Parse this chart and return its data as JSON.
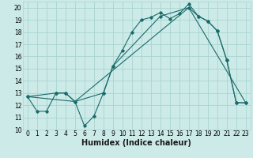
{
  "bg_color": "#cceae8",
  "grid_color": "#aad4d0",
  "line_color": "#1a6b6b",
  "marker_color": "#1a6b6b",
  "xlabel": "Humidex (Indice chaleur)",
  "xlabel_fontsize": 7.0,
  "xlim": [
    -0.5,
    23.5
  ],
  "ylim": [
    10,
    20.5
  ],
  "yticks": [
    10,
    11,
    12,
    13,
    14,
    15,
    16,
    17,
    18,
    19,
    20
  ],
  "xticks": [
    0,
    1,
    2,
    3,
    4,
    5,
    6,
    7,
    8,
    9,
    10,
    11,
    12,
    13,
    14,
    15,
    16,
    17,
    18,
    19,
    20,
    21,
    22,
    23
  ],
  "line1_x": [
    0,
    1,
    2,
    3,
    4,
    5,
    6,
    7,
    8,
    9,
    10,
    11,
    12,
    13,
    14,
    15,
    16,
    17,
    18,
    19,
    20,
    21,
    22,
    23
  ],
  "line1_y": [
    12.7,
    11.5,
    11.5,
    13.0,
    13.0,
    12.3,
    10.3,
    11.1,
    13.0,
    15.2,
    16.5,
    18.0,
    19.0,
    19.2,
    19.6,
    19.1,
    19.5,
    20.3,
    19.3,
    18.9,
    18.1,
    15.7,
    12.2,
    12.2
  ],
  "line2_x": [
    0,
    3,
    4,
    5,
    8,
    9,
    14,
    17,
    18,
    19,
    20,
    21,
    22,
    23
  ],
  "line2_y": [
    12.7,
    13.0,
    13.0,
    12.3,
    13.0,
    15.2,
    19.3,
    20.0,
    19.3,
    18.9,
    18.1,
    15.7,
    12.2,
    12.2
  ],
  "line3_x": [
    0,
    5,
    17,
    23
  ],
  "line3_y": [
    12.7,
    12.3,
    20.0,
    12.2
  ]
}
